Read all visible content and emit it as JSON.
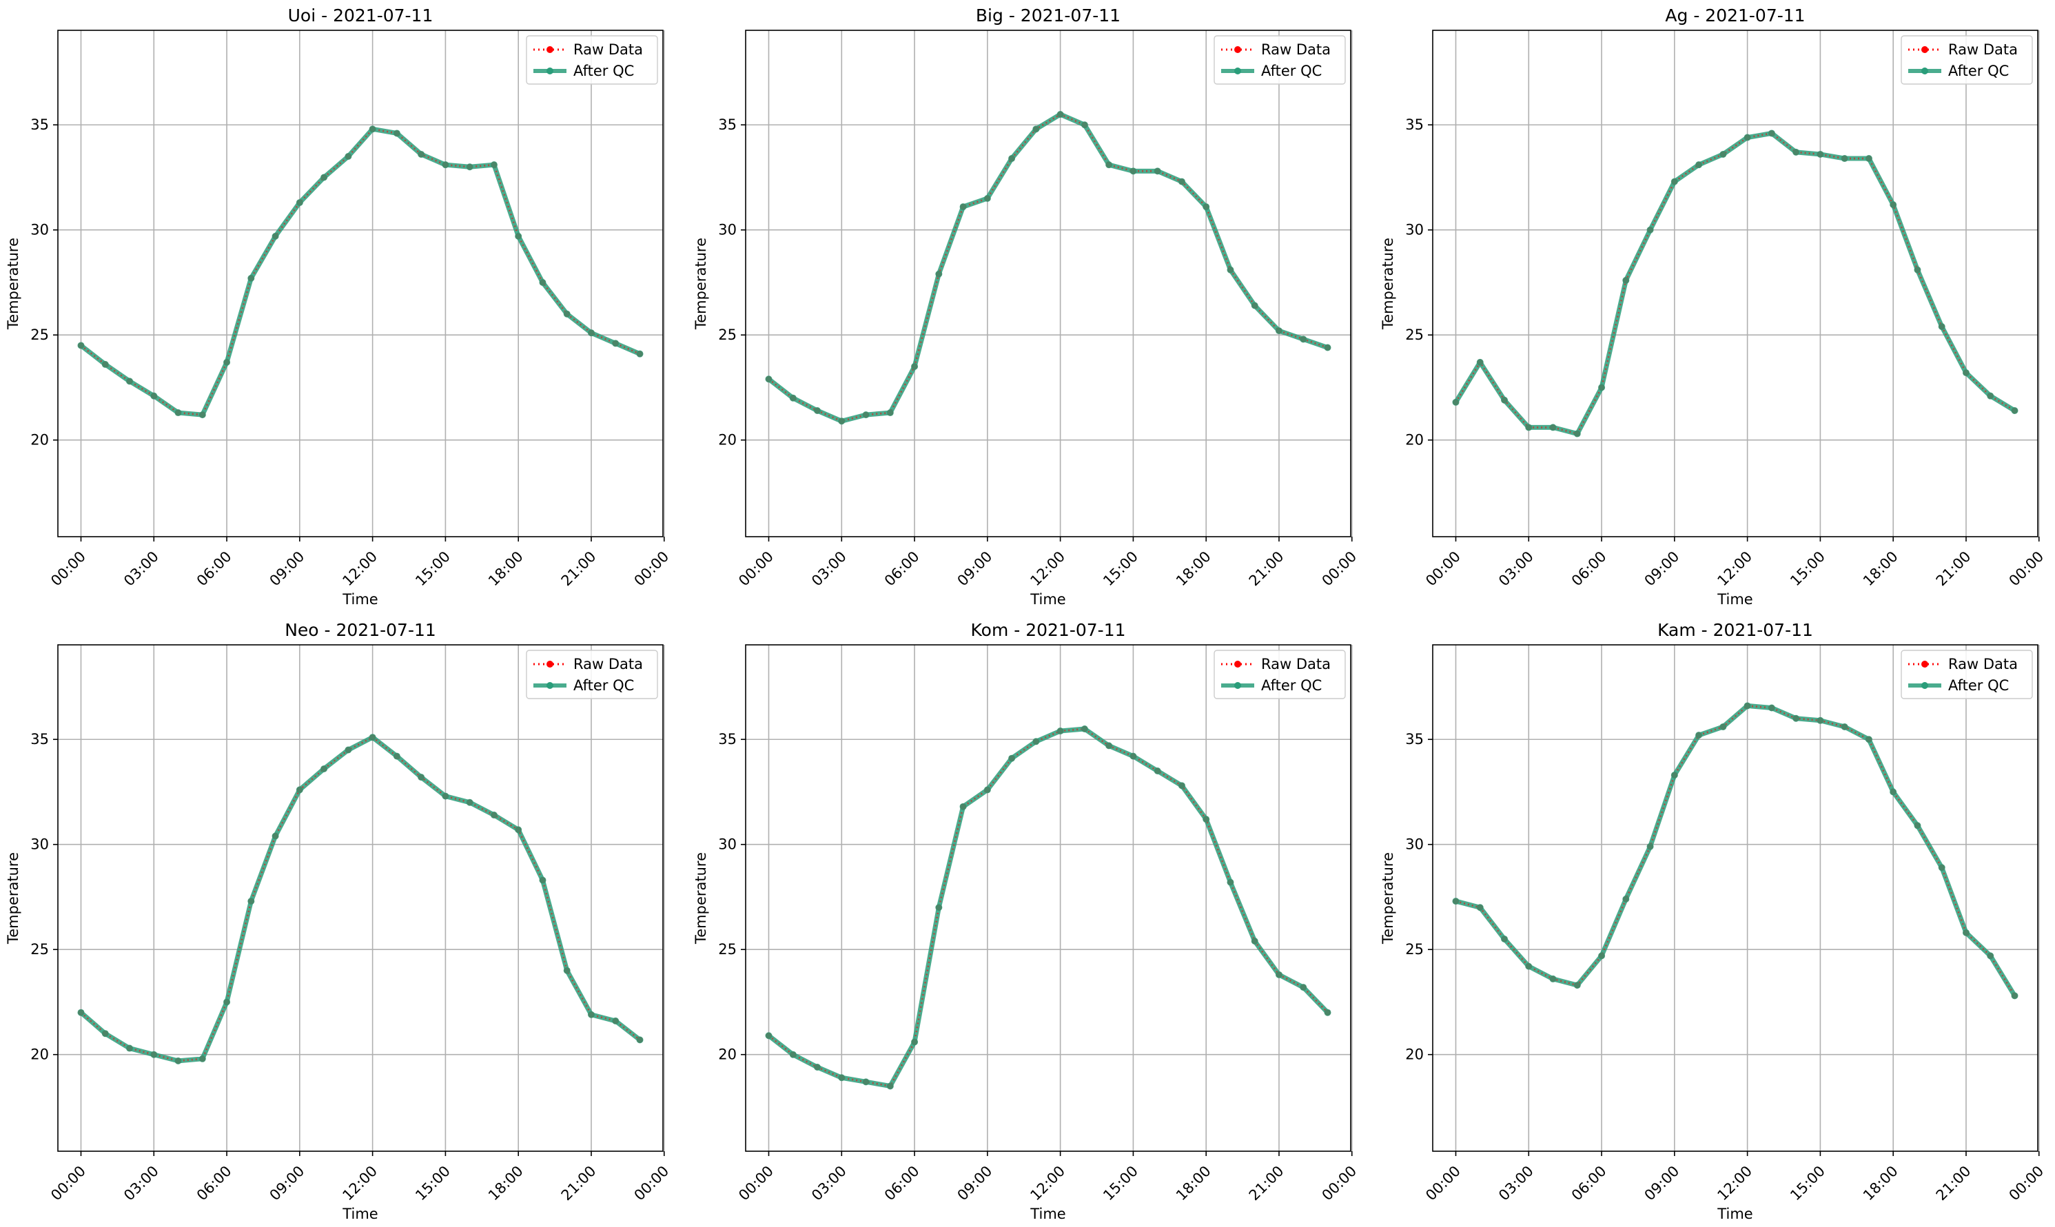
{
  "figure": {
    "colors": {
      "raw": "#ff0000",
      "qc": "#2a9d7a",
      "grid": "#b0b0b0",
      "axis": "#000000"
    }
  },
  "legend": {
    "raw_label": "Raw Data",
    "qc_label": "After QC",
    "placement": "upper right"
  },
  "chart_data": [
    {
      "type": "line",
      "title": "Uoi - 2021-07-11",
      "xlabel": "Time",
      "ylabel": "Temperature",
      "ylim": [
        15.4,
        39.5
      ],
      "xlim": [
        -0.95,
        23.95
      ],
      "yticks": [
        20,
        25,
        30,
        35
      ],
      "xticks": [
        0,
        3,
        6,
        9,
        12,
        15,
        18,
        21,
        24
      ],
      "xtick_labels": [
        "00:00",
        "03:00",
        "06:00",
        "09:00",
        "12:00",
        "15:00",
        "18:00",
        "21:00",
        "00:00"
      ],
      "grid": true,
      "hours": [
        0,
        1,
        2,
        3,
        4,
        5,
        6,
        7,
        8,
        9,
        10,
        11,
        12,
        13,
        14,
        15,
        16,
        17,
        18,
        19,
        20,
        21,
        22,
        23
      ],
      "series": [
        {
          "name": "Raw Data",
          "values": [
            24.5,
            23.6,
            22.8,
            22.1,
            21.3,
            21.2,
            23.7,
            27.7,
            29.7,
            31.3,
            32.5,
            33.5,
            34.8,
            34.6,
            33.6,
            33.1,
            33.0,
            33.1,
            29.7,
            27.5,
            26.0,
            25.1,
            24.6,
            24.1
          ]
        },
        {
          "name": "After QC",
          "values": [
            24.5,
            23.6,
            22.8,
            22.1,
            21.3,
            21.2,
            23.7,
            27.7,
            29.7,
            31.3,
            32.5,
            33.5,
            34.8,
            34.6,
            33.6,
            33.1,
            33.0,
            33.1,
            29.7,
            27.5,
            26.0,
            25.1,
            24.6,
            24.1
          ]
        }
      ]
    },
    {
      "type": "line",
      "title": "Big - 2021-07-11",
      "xlabel": "Time",
      "ylabel": "Temperature",
      "ylim": [
        15.4,
        39.5
      ],
      "xlim": [
        -0.95,
        23.95
      ],
      "yticks": [
        20,
        25,
        30,
        35
      ],
      "xticks": [
        0,
        3,
        6,
        9,
        12,
        15,
        18,
        21,
        24
      ],
      "xtick_labels": [
        "00:00",
        "03:00",
        "06:00",
        "09:00",
        "12:00",
        "15:00",
        "18:00",
        "21:00",
        "00:00"
      ],
      "grid": true,
      "hours": [
        0,
        1,
        2,
        3,
        4,
        5,
        6,
        7,
        8,
        9,
        10,
        11,
        12,
        13,
        14,
        15,
        16,
        17,
        18,
        19,
        20,
        21,
        22,
        23
      ],
      "series": [
        {
          "name": "Raw Data",
          "values": [
            22.9,
            22.0,
            21.4,
            20.9,
            21.2,
            21.3,
            23.5,
            27.9,
            31.1,
            31.5,
            33.4,
            34.8,
            35.5,
            35.0,
            33.1,
            32.8,
            32.8,
            32.3,
            31.1,
            28.1,
            26.4,
            25.2,
            24.8,
            24.4
          ]
        },
        {
          "name": "After QC",
          "values": [
            22.9,
            22.0,
            21.4,
            20.9,
            21.2,
            21.3,
            23.5,
            27.9,
            31.1,
            31.5,
            33.4,
            34.8,
            35.5,
            35.0,
            33.1,
            32.8,
            32.8,
            32.3,
            31.1,
            28.1,
            26.4,
            25.2,
            24.8,
            24.4
          ]
        }
      ]
    },
    {
      "type": "line",
      "title": "Ag - 2021-07-11",
      "xlabel": "Time",
      "ylabel": "Temperature",
      "ylim": [
        15.4,
        39.5
      ],
      "xlim": [
        -0.95,
        23.95
      ],
      "yticks": [
        20,
        25,
        30,
        35
      ],
      "xticks": [
        0,
        3,
        6,
        9,
        12,
        15,
        18,
        21,
        24
      ],
      "xtick_labels": [
        "00:00",
        "03:00",
        "06:00",
        "09:00",
        "12:00",
        "15:00",
        "18:00",
        "21:00",
        "00:00"
      ],
      "grid": true,
      "hours": [
        0,
        1,
        2,
        3,
        4,
        5,
        6,
        7,
        8,
        9,
        10,
        11,
        12,
        13,
        14,
        15,
        16,
        17,
        18,
        19,
        20,
        21,
        22,
        23
      ],
      "series": [
        {
          "name": "Raw Data",
          "values": [
            21.8,
            23.7,
            21.9,
            20.6,
            20.6,
            20.3,
            22.5,
            27.6,
            30.0,
            32.3,
            33.1,
            33.6,
            34.4,
            34.6,
            33.7,
            33.6,
            33.4,
            33.4,
            31.2,
            28.1,
            25.4,
            23.2,
            22.1,
            21.4
          ]
        },
        {
          "name": "After QC",
          "values": [
            21.8,
            23.7,
            21.9,
            20.6,
            20.6,
            20.3,
            22.5,
            27.6,
            30.0,
            32.3,
            33.1,
            33.6,
            34.4,
            34.6,
            33.7,
            33.6,
            33.4,
            33.4,
            31.2,
            28.1,
            25.4,
            23.2,
            22.1,
            21.4
          ]
        }
      ]
    },
    {
      "type": "line",
      "title": "Neo - 2021-07-11",
      "xlabel": "Time",
      "ylabel": "Temperature",
      "ylim": [
        15.4,
        39.5
      ],
      "xlim": [
        -0.95,
        23.95
      ],
      "yticks": [
        20,
        25,
        30,
        35
      ],
      "xticks": [
        0,
        3,
        6,
        9,
        12,
        15,
        18,
        21,
        24
      ],
      "xtick_labels": [
        "00:00",
        "03:00",
        "06:00",
        "09:00",
        "12:00",
        "15:00",
        "18:00",
        "21:00",
        "00:00"
      ],
      "grid": true,
      "hours": [
        0,
        1,
        2,
        3,
        4,
        5,
        6,
        7,
        8,
        9,
        10,
        11,
        12,
        13,
        14,
        15,
        16,
        17,
        18,
        19,
        20,
        21,
        22,
        23
      ],
      "series": [
        {
          "name": "Raw Data",
          "values": [
            22.0,
            21.0,
            20.3,
            20.0,
            19.7,
            19.8,
            22.5,
            27.3,
            30.4,
            32.6,
            33.6,
            34.5,
            35.1,
            34.2,
            33.2,
            32.3,
            32.0,
            31.4,
            30.7,
            28.3,
            24.0,
            21.9,
            21.6,
            20.7
          ]
        },
        {
          "name": "After QC",
          "values": [
            22.0,
            21.0,
            20.3,
            20.0,
            19.7,
            19.8,
            22.5,
            27.3,
            30.4,
            32.6,
            33.6,
            34.5,
            35.1,
            34.2,
            33.2,
            32.3,
            32.0,
            31.4,
            30.7,
            28.3,
            24.0,
            21.9,
            21.6,
            20.7
          ]
        }
      ]
    },
    {
      "type": "line",
      "title": "Kom - 2021-07-11",
      "xlabel": "Time",
      "ylabel": "Temperature",
      "ylim": [
        15.4,
        39.5
      ],
      "xlim": [
        -0.95,
        23.95
      ],
      "yticks": [
        20,
        25,
        30,
        35
      ],
      "xticks": [
        0,
        3,
        6,
        9,
        12,
        15,
        18,
        21,
        24
      ],
      "xtick_labels": [
        "00:00",
        "03:00",
        "06:00",
        "09:00",
        "12:00",
        "15:00",
        "18:00",
        "21:00",
        "00:00"
      ],
      "grid": true,
      "hours": [
        0,
        1,
        2,
        3,
        4,
        5,
        6,
        7,
        8,
        9,
        10,
        11,
        12,
        13,
        14,
        15,
        16,
        17,
        18,
        19,
        20,
        21,
        22,
        23
      ],
      "series": [
        {
          "name": "Raw Data",
          "values": [
            20.9,
            20.0,
            19.4,
            18.9,
            18.7,
            18.5,
            20.6,
            27.0,
            31.8,
            32.6,
            34.1,
            34.9,
            35.4,
            35.5,
            34.7,
            34.2,
            33.5,
            32.8,
            31.2,
            28.2,
            25.4,
            23.8,
            23.2,
            22.0
          ]
        },
        {
          "name": "After QC",
          "values": [
            20.9,
            20.0,
            19.4,
            18.9,
            18.7,
            18.5,
            20.6,
            27.0,
            31.8,
            32.6,
            34.1,
            34.9,
            35.4,
            35.5,
            34.7,
            34.2,
            33.5,
            32.8,
            31.2,
            28.2,
            25.4,
            23.8,
            23.2,
            22.0
          ]
        }
      ]
    },
    {
      "type": "line",
      "title": "Kam - 2021-07-11",
      "xlabel": "Time",
      "ylabel": "Temperature",
      "ylim": [
        15.4,
        39.5
      ],
      "xlim": [
        -0.95,
        23.95
      ],
      "yticks": [
        20,
        25,
        30,
        35
      ],
      "xticks": [
        0,
        3,
        6,
        9,
        12,
        15,
        18,
        21,
        24
      ],
      "xtick_labels": [
        "00:00",
        "03:00",
        "06:00",
        "09:00",
        "12:00",
        "15:00",
        "18:00",
        "21:00",
        "00:00"
      ],
      "grid": true,
      "hours": [
        0,
        1,
        2,
        3,
        4,
        5,
        6,
        7,
        8,
        9,
        10,
        11,
        12,
        13,
        14,
        15,
        16,
        17,
        18,
        19,
        20,
        21,
        22,
        23
      ],
      "series": [
        {
          "name": "Raw Data",
          "values": [
            27.3,
            27.0,
            25.5,
            24.2,
            23.6,
            23.3,
            24.7,
            27.4,
            29.9,
            33.3,
            35.2,
            35.6,
            36.6,
            36.5,
            36.0,
            35.9,
            35.6,
            35.0,
            32.5,
            30.9,
            28.9,
            25.8,
            24.7,
            22.8
          ]
        },
        {
          "name": "After QC",
          "values": [
            27.3,
            27.0,
            25.5,
            24.2,
            23.6,
            23.3,
            24.7,
            27.4,
            29.9,
            33.3,
            35.2,
            35.6,
            36.6,
            36.5,
            36.0,
            35.9,
            35.6,
            35.0,
            32.5,
            30.9,
            28.9,
            25.8,
            24.7,
            22.8
          ]
        }
      ]
    }
  ]
}
